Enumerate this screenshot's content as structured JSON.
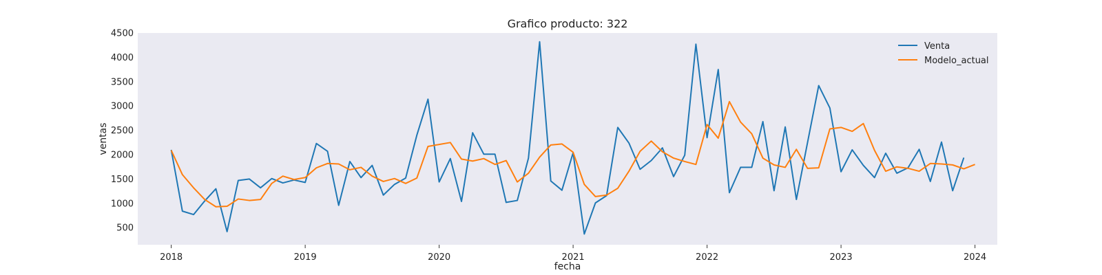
{
  "chart_data": {
    "type": "line",
    "title": "Grafico producto: 322",
    "xlabel": "fecha",
    "ylabel": "ventas",
    "x_start": "2018-01",
    "x_ticks": [
      "2018",
      "2019",
      "2020",
      "2021",
      "2022",
      "2023",
      "2024"
    ],
    "y_ticks": [
      500,
      1000,
      1500,
      2000,
      2500,
      3000,
      3500,
      4000,
      4500
    ],
    "xlim": [
      "2017-10",
      "2024-03"
    ],
    "ylim": [
      150,
      4500
    ],
    "grid": false,
    "legend_position": "top-right",
    "series": [
      {
        "name": "Venta",
        "color": "#1f77b4",
        "values": [
          2100,
          840,
          770,
          1050,
          1300,
          420,
          1470,
          1500,
          1320,
          1510,
          1420,
          1480,
          1430,
          2230,
          2070,
          960,
          1860,
          1530,
          1780,
          1170,
          1390,
          1520,
          2400,
          3140,
          1440,
          1920,
          1040,
          2450,
          2010,
          2010,
          1020,
          1060,
          1930,
          4320,
          1460,
          1270,
          2040,
          370,
          1010,
          1160,
          2560,
          2240,
          1700,
          1880,
          2140,
          1550,
          1990,
          4270,
          2350,
          3750,
          1220,
          1740,
          1740,
          2680,
          1260,
          2570,
          1080,
          2250,
          3420,
          2960,
          1650,
          2100,
          1780,
          1530,
          2030,
          1620,
          1730,
          2110,
          1450,
          2260,
          1260,
          1940
        ]
      },
      {
        "name": "Modelo_actual",
        "color": "#ff7f0e",
        "values": [
          2090,
          1590,
          1320,
          1080,
          930,
          940,
          1090,
          1060,
          1080,
          1410,
          1560,
          1490,
          1530,
          1730,
          1820,
          1810,
          1690,
          1740,
          1560,
          1450,
          1510,
          1410,
          1520,
          2170,
          2210,
          2250,
          1910,
          1870,
          1920,
          1800,
          1880,
          1440,
          1620,
          1950,
          2200,
          2220,
          2050,
          1390,
          1140,
          1170,
          1310,
          1660,
          2070,
          2280,
          2060,
          1930,
          1860,
          1800,
          2620,
          2340,
          3090,
          2670,
          2430,
          1930,
          1790,
          1740,
          2110,
          1720,
          1730,
          2530,
          2560,
          2480,
          2640,
          2090,
          1660,
          1750,
          1720,
          1660,
          1820,
          1810,
          1790,
          1710,
          1800
        ]
      }
    ]
  }
}
